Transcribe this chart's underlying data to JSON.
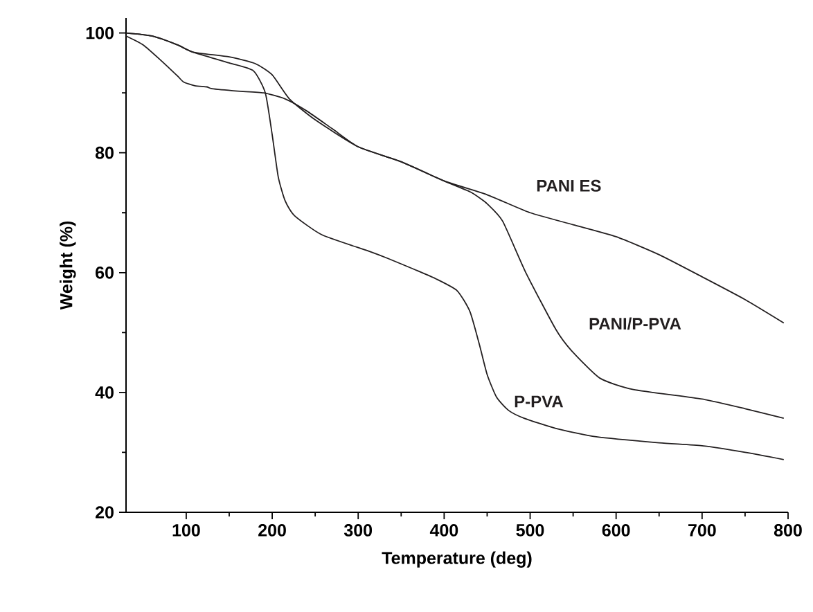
{
  "chart_data": {
    "type": "line",
    "xlabel": "Temperature (deg)",
    "ylabel": "Weight (%)",
    "xlim": [
      30,
      800
    ],
    "ylim": [
      20,
      102.5
    ],
    "xticks": [
      100,
      200,
      300,
      400,
      500,
      600,
      700,
      800
    ],
    "yticks": [
      20,
      40,
      60,
      80,
      100
    ],
    "line_style": "solid",
    "series": [
      {
        "name": "PANI ES",
        "color": "#231f20",
        "x": [
          30,
          50,
          70,
          90,
          97,
          110,
          124,
          130,
          160,
          190,
          215,
          240,
          270,
          300,
          350,
          400,
          450,
          500,
          550,
          600,
          650,
          700,
          750,
          795
        ],
        "values": [
          99.5,
          98,
          95.5,
          92.8,
          91.8,
          91.2,
          91,
          90.7,
          90.3,
          90,
          89,
          87,
          84,
          81,
          78.5,
          75.3,
          73,
          70,
          68,
          66,
          63,
          59.3,
          55.5,
          51.6
        ]
      },
      {
        "name": "PANI/P-PVA",
        "color": "#231f20",
        "x": [
          30,
          60,
          90,
          108,
          150,
          180,
          200,
          220,
          250,
          300,
          350,
          400,
          430,
          441,
          450,
          468,
          495,
          530,
          548,
          581,
          620,
          700,
          750,
          795
        ],
        "values": [
          100,
          99.5,
          98,
          96.8,
          96,
          94.9,
          93,
          89,
          85.5,
          81,
          78.5,
          75.3,
          73.5,
          72.5,
          71.5,
          68.6,
          60,
          50.5,
          47,
          42.4,
          40.5,
          38.9,
          37.3,
          35.7
        ]
      },
      {
        "name": "P-PVA",
        "color": "#231f20",
        "x": [
          30,
          60,
          90,
          108,
          150,
          178,
          192,
          200,
          207,
          215,
          226,
          258,
          312,
          334,
          366,
          390,
          415,
          430,
          441,
          450,
          461,
          475,
          493,
          530,
          577,
          650,
          700,
          750,
          795
        ],
        "values": [
          100,
          99.5,
          98,
          96.8,
          95,
          93.7,
          90,
          83,
          76,
          72,
          69.5,
          66.3,
          63.6,
          62.4,
          60.5,
          59,
          57,
          53.5,
          48,
          43,
          39.2,
          37,
          35.7,
          34,
          32.6,
          31.6,
          31.1,
          30,
          28.8
        ]
      }
    ]
  }
}
